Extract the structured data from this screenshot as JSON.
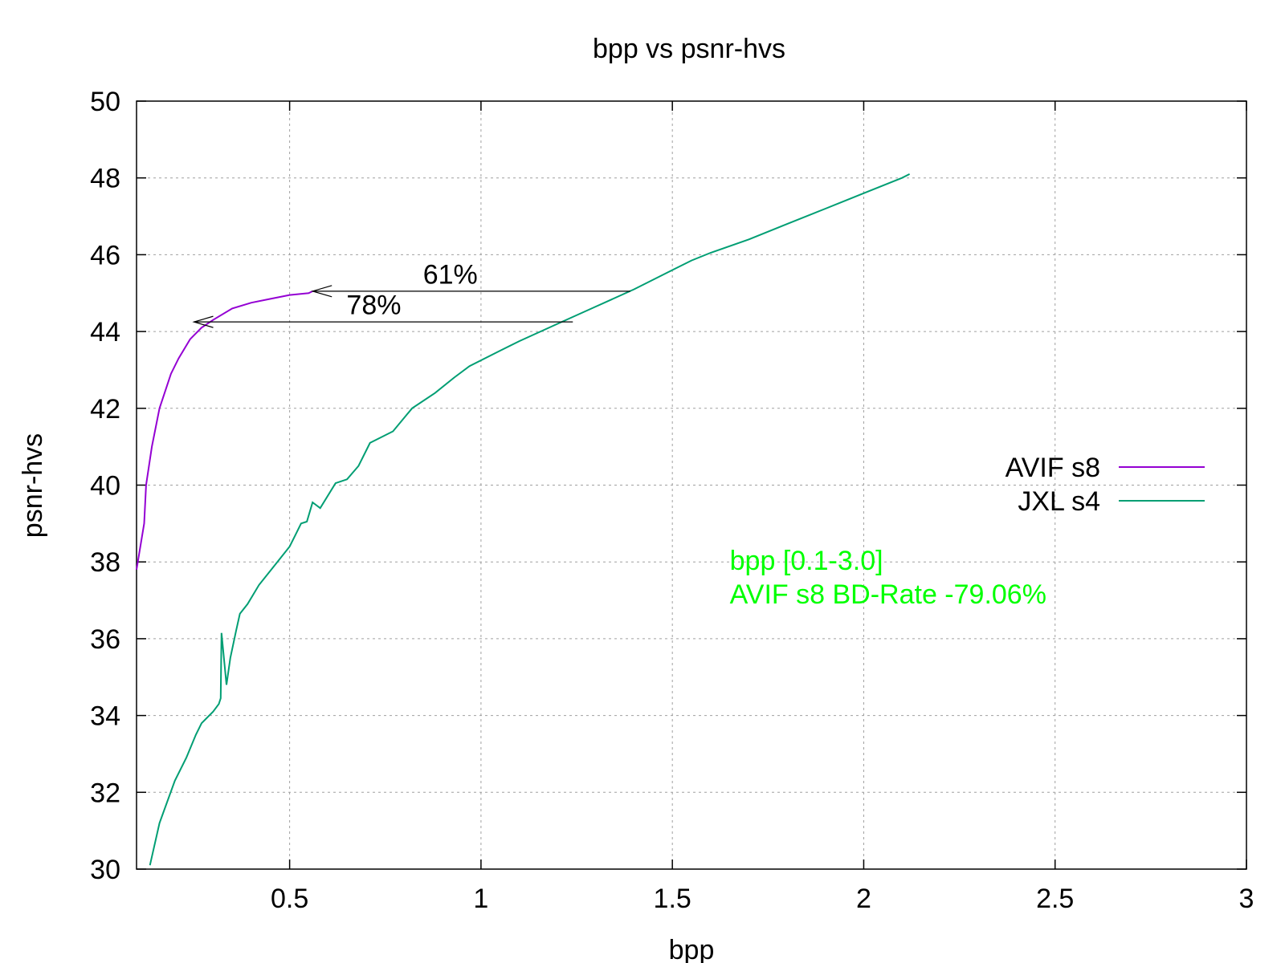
{
  "chart_data": {
    "type": "line",
    "title": "bpp vs psnr-hvs",
    "xlabel": "bpp",
    "ylabel": "psnr-hvs",
    "xlim": [
      0.1,
      3.0
    ],
    "ylim": [
      30,
      50
    ],
    "xticks": [
      0.5,
      1,
      1.5,
      2,
      2.5,
      3
    ],
    "yticks": [
      30,
      32,
      34,
      36,
      38,
      40,
      42,
      44,
      46,
      48,
      50
    ],
    "grid": true,
    "legend_position": "right",
    "series": [
      {
        "name": "AVIF s8",
        "color": "#9400d3",
        "points": [
          [
            0.1,
            37.8
          ],
          [
            0.12,
            39.0
          ],
          [
            0.125,
            40.0
          ],
          [
            0.14,
            41.0
          ],
          [
            0.16,
            42.0
          ],
          [
            0.19,
            42.9
          ],
          [
            0.21,
            43.3
          ],
          [
            0.24,
            43.8
          ],
          [
            0.27,
            44.1
          ],
          [
            0.3,
            44.3
          ],
          [
            0.35,
            44.6
          ],
          [
            0.4,
            44.75
          ],
          [
            0.45,
            44.85
          ],
          [
            0.5,
            44.95
          ],
          [
            0.55,
            45.0
          ],
          [
            0.56,
            45.05
          ]
        ]
      },
      {
        "name": "JXL s4",
        "color": "#009e73",
        "points": [
          [
            0.135,
            30.1
          ],
          [
            0.16,
            31.2
          ],
          [
            0.2,
            32.3
          ],
          [
            0.23,
            32.9
          ],
          [
            0.255,
            33.5
          ],
          [
            0.27,
            33.8
          ],
          [
            0.3,
            34.1
          ],
          [
            0.315,
            34.3
          ],
          [
            0.32,
            34.45
          ],
          [
            0.322,
            36.15
          ],
          [
            0.335,
            34.8
          ],
          [
            0.345,
            35.5
          ],
          [
            0.36,
            36.2
          ],
          [
            0.37,
            36.65
          ],
          [
            0.39,
            36.9
          ],
          [
            0.42,
            37.4
          ],
          [
            0.46,
            37.9
          ],
          [
            0.5,
            38.4
          ],
          [
            0.515,
            38.7
          ],
          [
            0.53,
            39.0
          ],
          [
            0.545,
            39.05
          ],
          [
            0.56,
            39.55
          ],
          [
            0.58,
            39.4
          ],
          [
            0.62,
            40.05
          ],
          [
            0.65,
            40.15
          ],
          [
            0.68,
            40.5
          ],
          [
            0.71,
            41.1
          ],
          [
            0.77,
            41.4
          ],
          [
            0.82,
            42.0
          ],
          [
            0.88,
            42.4
          ],
          [
            0.93,
            42.8
          ],
          [
            0.97,
            43.1
          ],
          [
            1.05,
            43.5
          ],
          [
            1.1,
            43.75
          ],
          [
            1.2,
            44.2
          ],
          [
            1.3,
            44.65
          ],
          [
            1.4,
            45.1
          ],
          [
            1.5,
            45.6
          ],
          [
            1.55,
            45.85
          ],
          [
            1.6,
            46.05
          ],
          [
            1.7,
            46.4
          ],
          [
            1.8,
            46.8
          ],
          [
            1.9,
            47.2
          ],
          [
            2.0,
            47.6
          ],
          [
            2.1,
            48.0
          ],
          [
            2.12,
            48.1
          ]
        ]
      }
    ],
    "annotations": [
      {
        "label": "61%",
        "from": [
          1.39,
          45.05
        ],
        "to": [
          0.56,
          45.05
        ],
        "label_at": [
          0.92,
          45.25
        ]
      },
      {
        "label": "78%",
        "from": [
          1.24,
          44.25
        ],
        "to": [
          0.25,
          44.25
        ],
        "label_at": [
          0.72,
          44.45
        ]
      }
    ],
    "note": {
      "lines": [
        "bpp [0.1-3.0]",
        "AVIF s8 BD-Rate -79.06%"
      ],
      "color": "#00ff00",
      "at": [
        1.65,
        38.0
      ]
    }
  }
}
